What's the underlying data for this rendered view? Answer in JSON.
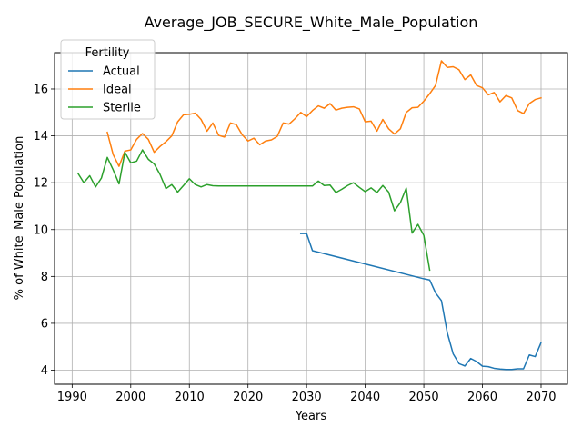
{
  "chart_data": {
    "type": "line",
    "title": "Average_JOB_SECURE_White_Male_Population",
    "xlabel": "Years",
    "ylabel": "% of White_Male Population",
    "xlim": [
      1987,
      2074.5
    ],
    "ylim": [
      3.4,
      17.55
    ],
    "xticks": [
      1990,
      2000,
      2010,
      2020,
      2030,
      2040,
      2050,
      2060,
      2070
    ],
    "yticks": [
      4,
      6,
      8,
      10,
      12,
      14,
      16
    ],
    "grid": true,
    "legend": {
      "title": "Fertility",
      "placement": "top-left"
    },
    "series": [
      {
        "name": "Actual",
        "color": "#1f77b4",
        "points": [
          [
            2029,
            9.83
          ],
          [
            2030,
            9.83
          ],
          [
            2031,
            9.1
          ],
          [
            2050,
            7.9
          ],
          [
            2051,
            7.85
          ],
          [
            2052,
            7.3
          ],
          [
            2053,
            6.97
          ],
          [
            2054,
            5.6
          ],
          [
            2055,
            4.7
          ],
          [
            2056,
            4.28
          ],
          [
            2057,
            4.18
          ],
          [
            2058,
            4.5
          ],
          [
            2059,
            4.37
          ],
          [
            2060,
            4.17
          ],
          [
            2061,
            4.15
          ],
          [
            2062,
            4.08
          ],
          [
            2063,
            4.05
          ],
          [
            2064,
            4.03
          ],
          [
            2065,
            4.03
          ],
          [
            2066,
            4.06
          ],
          [
            2067,
            4.06
          ],
          [
            2068,
            4.65
          ],
          [
            2069,
            4.58
          ],
          [
            2070,
            5.18
          ]
        ]
      },
      {
        "name": "Ideal",
        "color": "#ff7f0e",
        "points": [
          [
            1996,
            14.15
          ],
          [
            1997,
            13.2
          ],
          [
            1998,
            12.7
          ],
          [
            1999,
            13.35
          ],
          [
            2000,
            13.4
          ],
          [
            2001,
            13.85
          ],
          [
            2002,
            14.1
          ],
          [
            2003,
            13.85
          ],
          [
            2004,
            13.3
          ],
          [
            2005,
            13.55
          ],
          [
            2006,
            13.75
          ],
          [
            2007,
            14.0
          ],
          [
            2008,
            14.6
          ],
          [
            2009,
            14.9
          ],
          [
            2010,
            14.92
          ],
          [
            2011,
            14.97
          ],
          [
            2012,
            14.7
          ],
          [
            2013,
            14.2
          ],
          [
            2014,
            14.55
          ],
          [
            2015,
            14.02
          ],
          [
            2016,
            13.95
          ],
          [
            2017,
            14.55
          ],
          [
            2018,
            14.48
          ],
          [
            2019,
            14.05
          ],
          [
            2020,
            13.78
          ],
          [
            2021,
            13.9
          ],
          [
            2022,
            13.62
          ],
          [
            2023,
            13.78
          ],
          [
            2024,
            13.83
          ],
          [
            2025,
            13.98
          ],
          [
            2026,
            14.55
          ],
          [
            2027,
            14.5
          ],
          [
            2028,
            14.73
          ],
          [
            2029,
            15.0
          ],
          [
            2030,
            14.82
          ],
          [
            2031,
            15.08
          ],
          [
            2032,
            15.28
          ],
          [
            2033,
            15.18
          ],
          [
            2034,
            15.38
          ],
          [
            2035,
            15.1
          ],
          [
            2036,
            15.18
          ],
          [
            2037,
            15.22
          ],
          [
            2038,
            15.24
          ],
          [
            2039,
            15.15
          ],
          [
            2040,
            14.6
          ],
          [
            2041,
            14.63
          ],
          [
            2042,
            14.2
          ],
          [
            2043,
            14.7
          ],
          [
            2044,
            14.3
          ],
          [
            2045,
            14.08
          ],
          [
            2046,
            14.3
          ],
          [
            2047,
            15.0
          ],
          [
            2048,
            15.2
          ],
          [
            2049,
            15.22
          ],
          [
            2050,
            15.48
          ],
          [
            2051,
            15.8
          ],
          [
            2052,
            16.15
          ],
          [
            2053,
            17.2
          ],
          [
            2054,
            16.92
          ],
          [
            2055,
            16.95
          ],
          [
            2056,
            16.82
          ],
          [
            2057,
            16.4
          ],
          [
            2058,
            16.6
          ],
          [
            2059,
            16.15
          ],
          [
            2060,
            16.05
          ],
          [
            2061,
            15.75
          ],
          [
            2062,
            15.85
          ],
          [
            2063,
            15.45
          ],
          [
            2064,
            15.72
          ],
          [
            2065,
            15.62
          ],
          [
            2066,
            15.08
          ],
          [
            2067,
            14.95
          ],
          [
            2068,
            15.38
          ],
          [
            2069,
            15.55
          ],
          [
            2070,
            15.62
          ]
        ]
      },
      {
        "name": "Sterile",
        "color": "#2ca02c",
        "points": [
          [
            1991,
            12.4
          ],
          [
            1992,
            12.0
          ],
          [
            1993,
            12.3
          ],
          [
            1994,
            11.82
          ],
          [
            1995,
            12.2
          ],
          [
            1996,
            13.08
          ],
          [
            1997,
            12.55
          ],
          [
            1998,
            11.95
          ],
          [
            1999,
            13.3
          ],
          [
            2000,
            12.85
          ],
          [
            2001,
            12.92
          ],
          [
            2002,
            13.4
          ],
          [
            2003,
            13.0
          ],
          [
            2004,
            12.8
          ],
          [
            2005,
            12.35
          ],
          [
            2006,
            11.75
          ],
          [
            2007,
            11.92
          ],
          [
            2008,
            11.6
          ],
          [
            2009,
            11.88
          ],
          [
            2010,
            12.17
          ],
          [
            2011,
            11.92
          ],
          [
            2012,
            11.82
          ],
          [
            2013,
            11.92
          ],
          [
            2014,
            11.87
          ],
          [
            2015,
            11.86
          ],
          [
            2030,
            11.86
          ],
          [
            2031,
            11.86
          ],
          [
            2032,
            12.07
          ],
          [
            2033,
            11.88
          ],
          [
            2034,
            11.9
          ],
          [
            2035,
            11.58
          ],
          [
            2036,
            11.72
          ],
          [
            2037,
            11.88
          ],
          [
            2038,
            12.0
          ],
          [
            2039,
            11.8
          ],
          [
            2040,
            11.62
          ],
          [
            2041,
            11.78
          ],
          [
            2042,
            11.58
          ],
          [
            2043,
            11.88
          ],
          [
            2044,
            11.6
          ],
          [
            2045,
            10.8
          ],
          [
            2046,
            11.15
          ],
          [
            2047,
            11.77
          ],
          [
            2048,
            9.85
          ],
          [
            2049,
            10.22
          ],
          [
            2050,
            9.75
          ],
          [
            2051,
            8.27
          ]
        ]
      }
    ]
  }
}
